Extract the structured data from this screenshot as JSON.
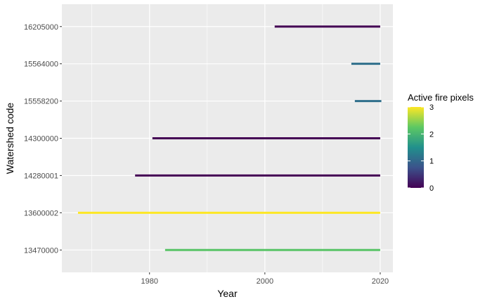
{
  "chart_data": {
    "type": "timeline-segments",
    "title": "",
    "xlabel": "Year",
    "ylabel": "Watershed code",
    "xlim": [
      1964.8,
      2022.2
    ],
    "x_ticks": [
      1980,
      2000,
      2020
    ],
    "x_minor_ticks": [
      1970,
      1990,
      2010
    ],
    "categories": [
      "13470000",
      "13600002",
      "14280001",
      "14300000",
      "15558200",
      "15564000",
      "16205000"
    ],
    "segments": [
      {
        "category": "13470000",
        "start": 1982.7,
        "end": 2020.0,
        "value": 2.2
      },
      {
        "category": "13600002",
        "start": 1967.6,
        "end": 2020.0,
        "value": 3.0
      },
      {
        "category": "14280001",
        "start": 1977.5,
        "end": 2020.0,
        "value": 0.0
      },
      {
        "category": "14300000",
        "start": 1980.5,
        "end": 2020.0,
        "value": 0.0
      },
      {
        "category": "15558200",
        "start": 2015.6,
        "end": 2020.2,
        "value": 1.1
      },
      {
        "category": "15564000",
        "start": 2015.0,
        "end": 2020.0,
        "value": 1.1
      },
      {
        "category": "16205000",
        "start": 2001.7,
        "end": 2020.0,
        "value": 0.0
      }
    ],
    "legend": {
      "title": "Active fire pixels",
      "placement": "right",
      "min": 0,
      "max": 3,
      "ticks": [
        0,
        1,
        2,
        3
      ],
      "colormap": [
        "#440154",
        "#3b528b",
        "#21908c",
        "#5dc863",
        "#fde725"
      ]
    },
    "grid": true,
    "panel_background": "#ebebeb",
    "grid_color": "#ffffff"
  }
}
